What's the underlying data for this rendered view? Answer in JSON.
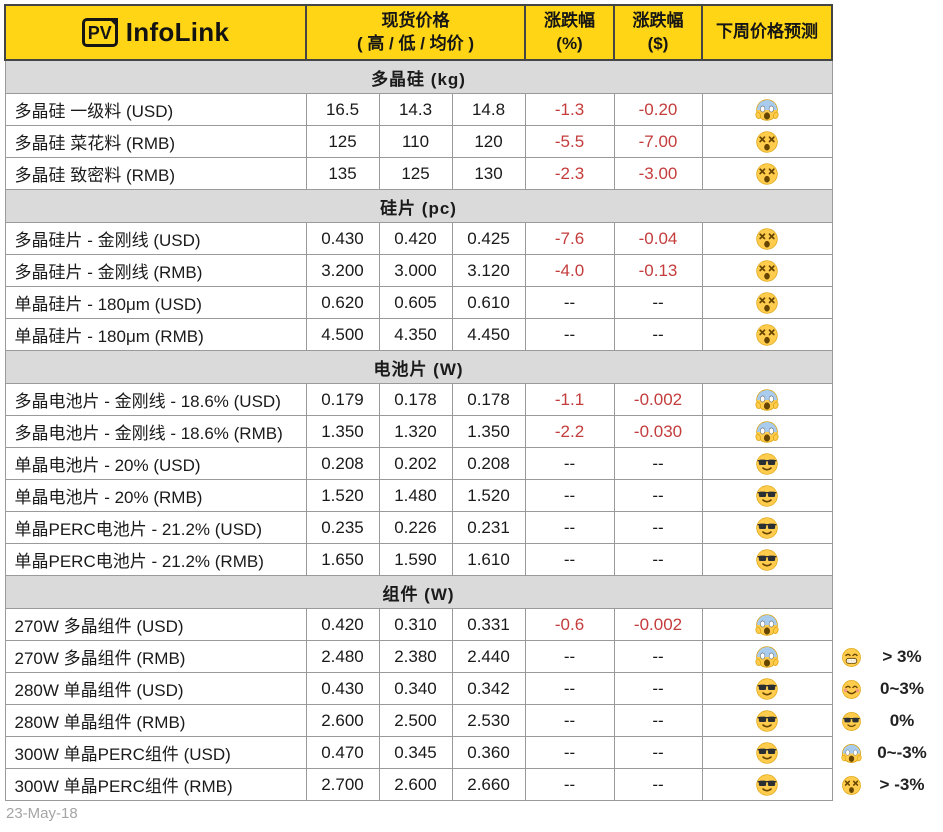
{
  "header": {
    "logo_pv": "PV",
    "logo_brand": "InfoLink",
    "col_spot_line1": "现货价格",
    "col_spot_line2": "( 高 / 低 / 均价 )",
    "col_pct_line1": "涨跌幅",
    "col_pct_line2": "(%)",
    "col_usd_line1": "涨跌幅",
    "col_usd_line2": "($)",
    "col_forecast": "下周价格预测"
  },
  "chart_data": {
    "type": "table",
    "columns": [
      "",
      "高",
      "低",
      "均价",
      "涨跌幅 (%)",
      "涨跌幅 ($)",
      "下周价格预测"
    ],
    "sections": [
      {
        "title": "多晶硅 (kg)",
        "rows": [
          {
            "label": "多晶硅 一级料 (USD)",
            "high": "16.5",
            "low": "14.3",
            "avg": "14.8",
            "change_pct": "-1.3",
            "change_usd": "-0.20",
            "forecast_emoji": "scream"
          },
          {
            "label": "多晶硅 菜花料 (RMB)",
            "high": "125",
            "low": "110",
            "avg": "120",
            "change_pct": "-5.5",
            "change_usd": "-7.00",
            "forecast_emoji": "dizzy"
          },
          {
            "label": "多晶硅 致密料 (RMB)",
            "high": "135",
            "low": "125",
            "avg": "130",
            "change_pct": "-2.3",
            "change_usd": "-3.00",
            "forecast_emoji": "dizzy"
          }
        ]
      },
      {
        "title": "硅片 (pc)",
        "rows": [
          {
            "label": "多晶硅片 - 金刚线 (USD)",
            "high": "0.430",
            "low": "0.420",
            "avg": "0.425",
            "change_pct": "-7.6",
            "change_usd": "-0.04",
            "forecast_emoji": "dizzy"
          },
          {
            "label": "多晶硅片 - 金刚线 (RMB)",
            "high": "3.200",
            "low": "3.000",
            "avg": "3.120",
            "change_pct": "-4.0",
            "change_usd": "-0.13",
            "forecast_emoji": "dizzy"
          },
          {
            "label": "单晶硅片 - 180μm (USD)",
            "high": "0.620",
            "low": "0.605",
            "avg": "0.610",
            "change_pct": "--",
            "change_usd": "--",
            "forecast_emoji": "dizzy"
          },
          {
            "label": "单晶硅片 - 180μm (RMB)",
            "high": "4.500",
            "low": "4.350",
            "avg": "4.450",
            "change_pct": "--",
            "change_usd": "--",
            "forecast_emoji": "dizzy"
          }
        ]
      },
      {
        "title": "电池片 (W)",
        "rows": [
          {
            "label": "多晶电池片 - 金刚线 - 18.6% (USD)",
            "high": "0.179",
            "low": "0.178",
            "avg": "0.178",
            "change_pct": "-1.1",
            "change_usd": "-0.002",
            "forecast_emoji": "scream"
          },
          {
            "label": "多晶电池片 - 金刚线 - 18.6% (RMB)",
            "high": "1.350",
            "low": "1.320",
            "avg": "1.350",
            "change_pct": "-2.2",
            "change_usd": "-0.030",
            "forecast_emoji": "scream"
          },
          {
            "label": "单晶电池片 - 20% (USD)",
            "high": "0.208",
            "low": "0.202",
            "avg": "0.208",
            "change_pct": "--",
            "change_usd": "--",
            "forecast_emoji": "cool"
          },
          {
            "label": "单晶电池片 - 20% (RMB)",
            "high": "1.520",
            "low": "1.480",
            "avg": "1.520",
            "change_pct": "--",
            "change_usd": "--",
            "forecast_emoji": "cool"
          },
          {
            "label": "单晶PERC电池片 - 21.2% (USD)",
            "high": "0.235",
            "low": "0.226",
            "avg": "0.231",
            "change_pct": "--",
            "change_usd": "--",
            "forecast_emoji": "cool"
          },
          {
            "label": "单晶PERC电池片 - 21.2% (RMB)",
            "high": "1.650",
            "low": "1.590",
            "avg": "1.610",
            "change_pct": "--",
            "change_usd": "--",
            "forecast_emoji": "cool"
          }
        ]
      },
      {
        "title": "组件 (W)",
        "rows": [
          {
            "label": "270W 多晶组件 (USD)",
            "high": "0.420",
            "low": "0.310",
            "avg": "0.331",
            "change_pct": "-0.6",
            "change_usd": "-0.002",
            "forecast_emoji": "scream"
          },
          {
            "label": "270W 多晶组件 (RMB)",
            "high": "2.480",
            "low": "2.380",
            "avg": "2.440",
            "change_pct": "--",
            "change_usd": "--",
            "forecast_emoji": "scream"
          },
          {
            "label": "280W 单晶组件 (USD)",
            "high": "0.430",
            "low": "0.340",
            "avg": "0.342",
            "change_pct": "--",
            "change_usd": "--",
            "forecast_emoji": "cool"
          },
          {
            "label": "280W 单晶组件 (RMB)",
            "high": "2.600",
            "low": "2.500",
            "avg": "2.530",
            "change_pct": "--",
            "change_usd": "--",
            "forecast_emoji": "cool"
          },
          {
            "label": "300W 单晶PERC组件 (USD)",
            "high": "0.470",
            "low": "0.345",
            "avg": "0.360",
            "change_pct": "--",
            "change_usd": "--",
            "forecast_emoji": "cool"
          },
          {
            "label": "300W 单晶PERC组件 (RMB)",
            "high": "2.700",
            "low": "2.600",
            "avg": "2.660",
            "change_pct": "--",
            "change_usd": "--",
            "forecast_emoji": "cool"
          }
        ]
      }
    ]
  },
  "legend": {
    "items": [
      {
        "emoji": "grin",
        "label": "> 3%"
      },
      {
        "emoji": "smile",
        "label": "0~3%"
      },
      {
        "emoji": "cool",
        "label": "0%"
      },
      {
        "emoji": "scream",
        "label": "0~-3%"
      },
      {
        "emoji": "dizzy",
        "label": "> -3%"
      }
    ]
  },
  "footer": {
    "date": "23-May-18"
  },
  "colors": {
    "header_yellow": "#FFD515",
    "section_gray": "#DADADA",
    "negative_red": "#C43C3C",
    "border_gray": "#9A9A9A"
  }
}
